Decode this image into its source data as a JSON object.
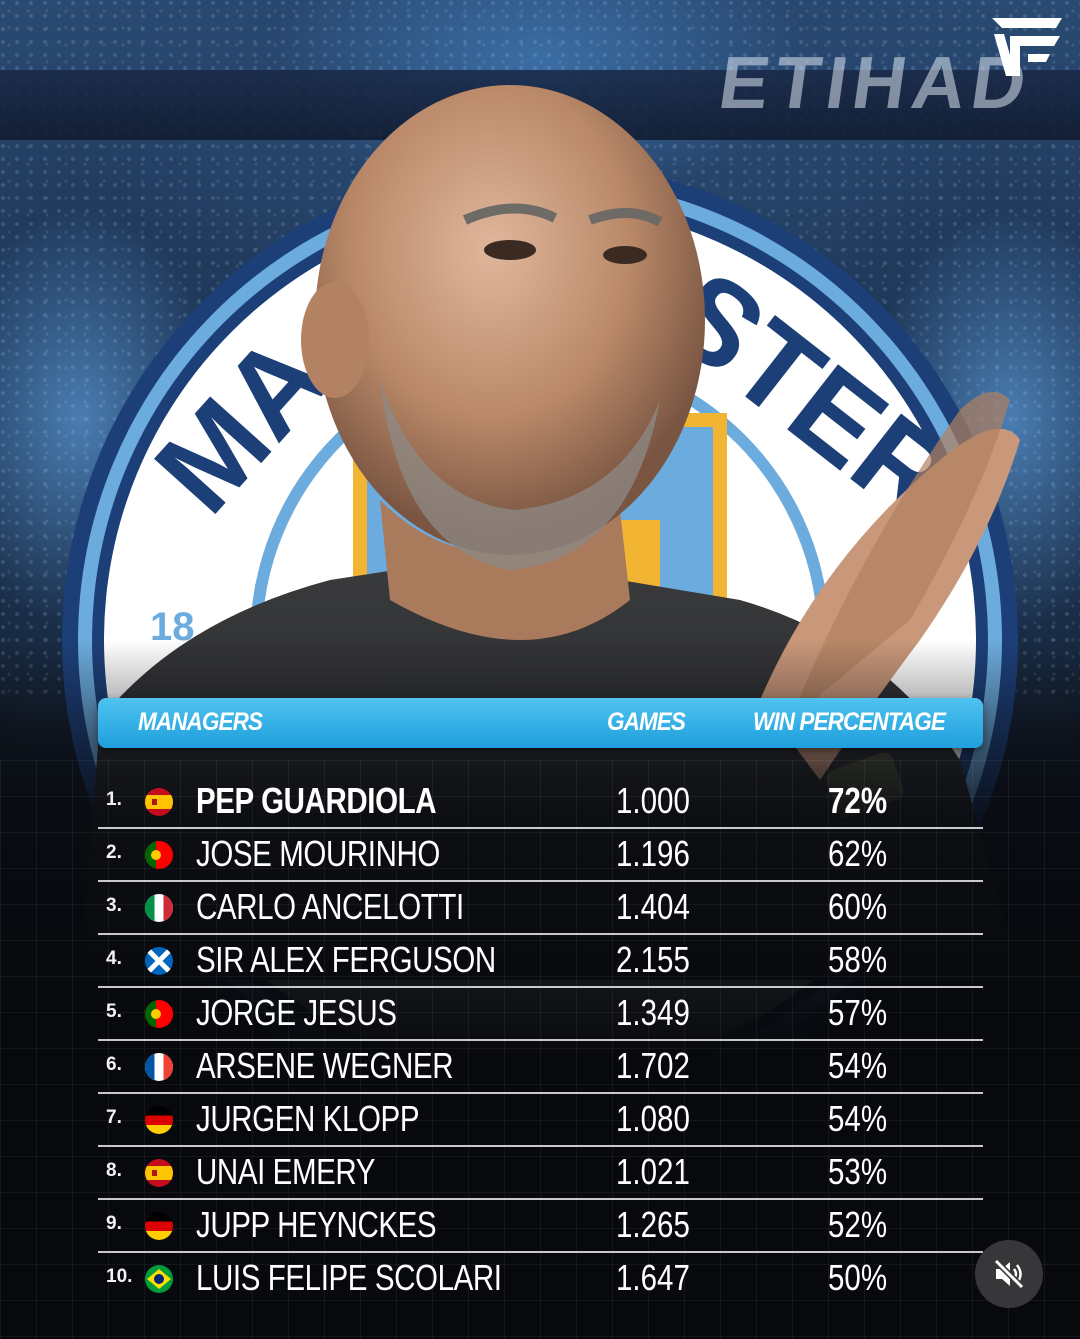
{
  "background": {
    "sponsor_text": "ETIHAD"
  },
  "crest": {
    "visible_letters": "MA STER"
  },
  "colors": {
    "header_blue": "#29aee6",
    "crest_navy": "#1c3f78",
    "crest_sky": "#6cabdd",
    "crest_gold": "#f1b433"
  },
  "table": {
    "headers": {
      "managers": "MANAGERS",
      "games": "GAMES",
      "win_percentage": "WIN PERCENTAGE"
    },
    "rows": [
      {
        "rank": "1.",
        "flag": "spain-flag",
        "name": "PEP GUARDIOLA",
        "games": "1.000",
        "win": "72%"
      },
      {
        "rank": "2.",
        "flag": "portugal-flag",
        "name": "JOSE MOURINHO",
        "games": "1.196",
        "win": "62%"
      },
      {
        "rank": "3.",
        "flag": "italy-flag",
        "name": "CARLO ANCELOTTI",
        "games": "1.404",
        "win": "60%"
      },
      {
        "rank": "4.",
        "flag": "scotland-flag",
        "name": "SIR ALEX FERGUSON",
        "games": "2.155",
        "win": "58%"
      },
      {
        "rank": "5.",
        "flag": "portugal-flag",
        "name": "JORGE JESUS",
        "games": "1.349",
        "win": "57%"
      },
      {
        "rank": "6.",
        "flag": "france-flag",
        "name": "ARSENE WEGNER",
        "games": "1.702",
        "win": "54%"
      },
      {
        "rank": "7.",
        "flag": "germany-flag",
        "name": "JURGEN KLOPP",
        "games": "1.080",
        "win": "54%"
      },
      {
        "rank": "8.",
        "flag": "spain-flag",
        "name": "UNAI EMERY",
        "games": "1.021",
        "win": "53%"
      },
      {
        "rank": "9.",
        "flag": "germany-flag",
        "name": "JUPP HEYNCKES",
        "games": "1.265",
        "win": "52%"
      },
      {
        "rank": "10.",
        "flag": "brazil-flag",
        "name": "LUIS FELIPE SCOLARI",
        "games": "1.647",
        "win": "50%"
      }
    ]
  },
  "controls": {
    "mute_icon": "speaker-muted-icon"
  }
}
